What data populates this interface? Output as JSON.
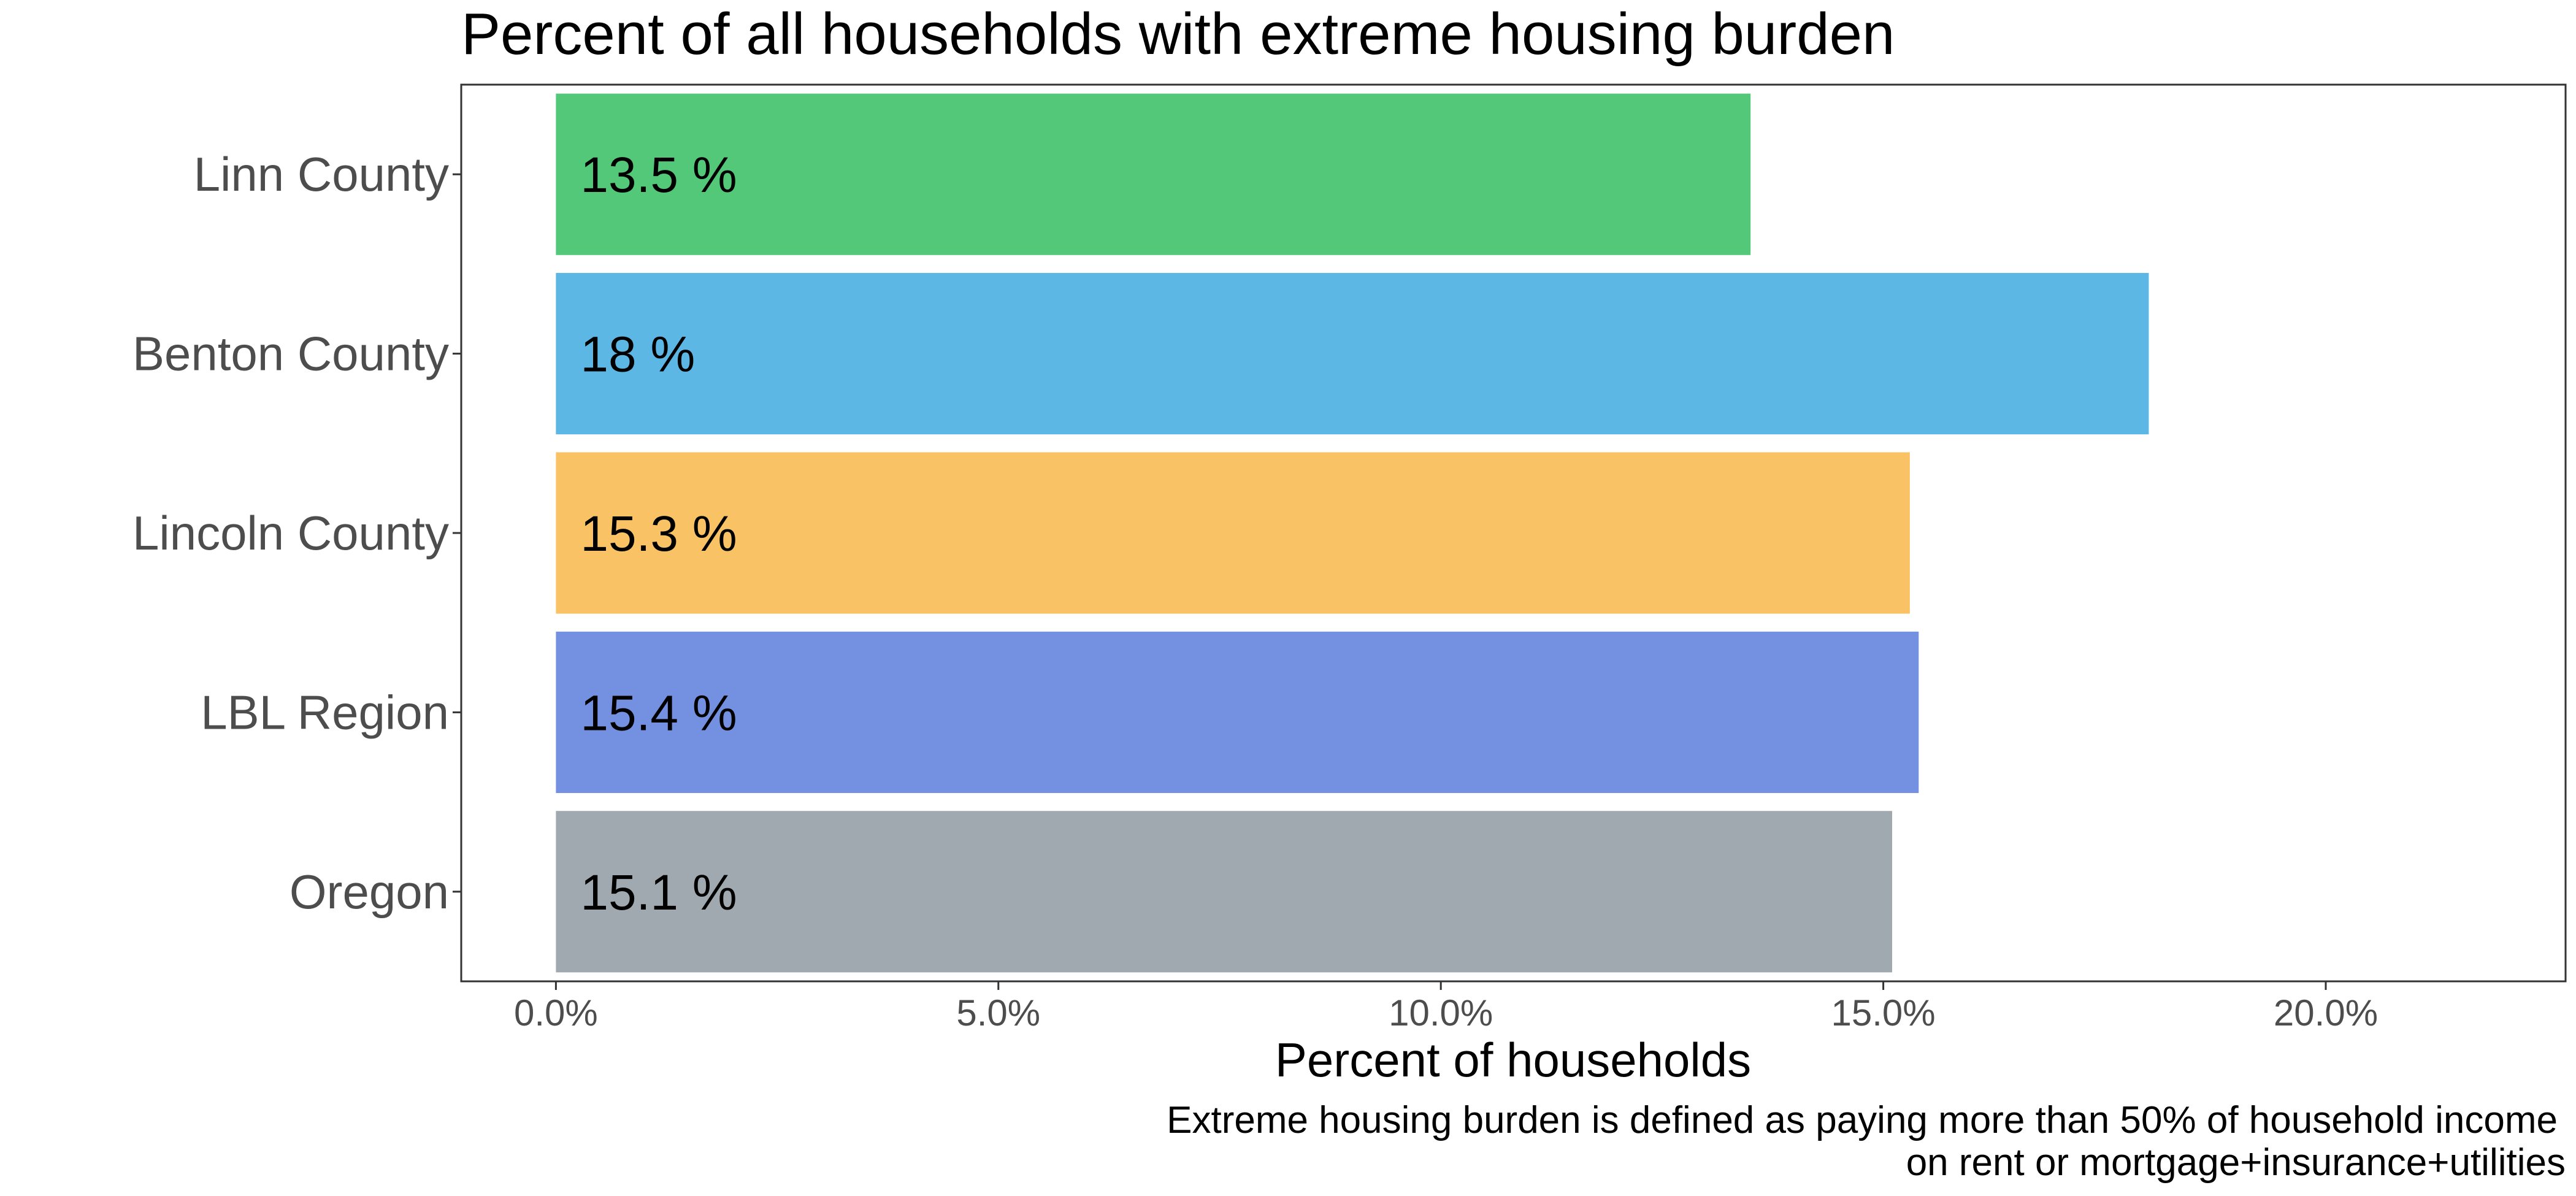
{
  "chart_data": {
    "type": "bar",
    "orientation": "horizontal",
    "title": "Percent of all households with extreme housing burden",
    "xlabel": "Percent of households",
    "ylabel": "",
    "caption_lines": [
      "Extreme housing burden is defined as paying more than 50% of household income",
      "on rent or mortgage+insurance+utilities"
    ],
    "categories": [
      "Linn County",
      "Benton County",
      "Lincoln County",
      "LBL Region",
      "Oregon"
    ],
    "values": [
      13.5,
      18.0,
      15.3,
      15.4,
      15.1
    ],
    "data_labels": [
      "13.5 %",
      "18 %",
      "15.3 %",
      "15.4 %",
      "15.1 %"
    ],
    "colors": [
      "#52c878",
      "#5db7e4",
      "#f9c365",
      "#7490e1",
      "#a0a9b0"
    ],
    "xticks": [
      0,
      5,
      10,
      15,
      20
    ],
    "xtick_labels": [
      "0.0%",
      "5.0%",
      "10.0%",
      "15.0%",
      "20.0%"
    ],
    "xlim": [
      -1.07,
      22.71
    ],
    "grid": false,
    "legend": "none"
  }
}
